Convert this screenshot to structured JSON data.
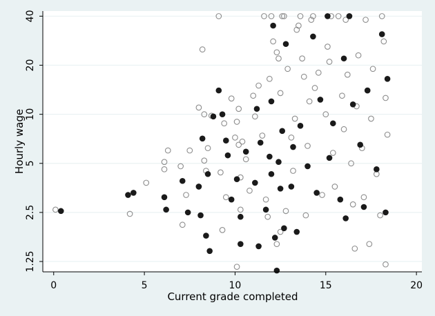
{
  "chart_data": {
    "type": "scatter",
    "title": "",
    "xlabel": "Current grade completed",
    "ylabel": "Hourly wage",
    "xlim": [
      -0.6,
      20.3
    ],
    "ylim": [
      1.08,
      43
    ],
    "y_scale": "log",
    "x_ticks": [
      0,
      5,
      10,
      15,
      20
    ],
    "y_ticks": [
      1.25,
      2.5,
      5,
      10,
      20,
      40
    ],
    "y_tick_labels": [
      "1.25",
      "2.5",
      "5",
      "10",
      "20",
      "40"
    ],
    "grid": "horizontal",
    "legend": "none",
    "colors": {
      "page_background": "#eaf2f3",
      "plot_background": "#ffffff",
      "gridline": "#eaf2f3",
      "filled_marker": "#1a1a1a",
      "hollow_marker_edge": "#8c8c8c"
    },
    "series": [
      {
        "marker": "hollow circle",
        "points": [
          [
            0.1,
            2.6
          ],
          [
            4.2,
            2.45
          ],
          [
            5.1,
            3.8
          ],
          [
            6.1,
            4.6
          ],
          [
            6.1,
            5.1
          ],
          [
            6.3,
            6.0
          ],
          [
            7.0,
            4.8
          ],
          [
            7.1,
            2.1
          ],
          [
            7.3,
            3.2
          ],
          [
            7.5,
            6.0
          ],
          [
            8.0,
            3.6
          ],
          [
            8.3,
            5.2
          ],
          [
            8.4,
            4.5
          ],
          [
            8.5,
            6.2
          ],
          [
            8.2,
            25
          ],
          [
            8.0,
            11
          ],
          [
            8.3,
            10
          ],
          [
            8.7,
            9.8
          ],
          [
            9.2,
            4.4
          ],
          [
            9.4,
            8.8
          ],
          [
            9.1,
            40
          ],
          [
            9.3,
            1.95
          ],
          [
            9.5,
            3.1
          ],
          [
            9.8,
            12.5
          ],
          [
            10.0,
            7.2
          ],
          [
            10.1,
            9.0
          ],
          [
            10.2,
            6.5
          ],
          [
            10.3,
            4.1
          ],
          [
            10.3,
            2.6
          ],
          [
            10.4,
            6.8
          ],
          [
            10.2,
            10.8
          ],
          [
            10.1,
            1.16
          ],
          [
            10.6,
            5.3
          ],
          [
            10.8,
            3.4
          ],
          [
            11.0,
            13
          ],
          [
            11.1,
            9.7
          ],
          [
            11.3,
            15
          ],
          [
            11.5,
            7.4
          ],
          [
            11.6,
            40
          ],
          [
            11.7,
            3.0
          ],
          [
            11.8,
            2.35
          ],
          [
            11.9,
            16.5
          ],
          [
            12.0,
            40
          ],
          [
            12.1,
            28
          ],
          [
            12.3,
            24
          ],
          [
            12.4,
            22
          ],
          [
            12.5,
            13.5
          ],
          [
            12.6,
            40
          ],
          [
            12.7,
            40
          ],
          [
            12.9,
            19
          ],
          [
            12.8,
            2.55
          ],
          [
            12.5,
            1.9
          ],
          [
            12.3,
            1.6
          ],
          [
            13.1,
            7.2
          ],
          [
            13.2,
            4.5
          ],
          [
            13.3,
            9.4
          ],
          [
            13.4,
            33
          ],
          [
            13.5,
            35
          ],
          [
            13.6,
            40
          ],
          [
            13.8,
            17
          ],
          [
            13.7,
            22
          ],
          [
            13.9,
            2.4
          ],
          [
            14.0,
            6.4
          ],
          [
            14.1,
            12
          ],
          [
            14.2,
            38
          ],
          [
            14.3,
            40
          ],
          [
            14.4,
            14.5
          ],
          [
            14.6,
            18
          ],
          [
            14.8,
            3.2
          ],
          [
            15.0,
            10
          ],
          [
            15.1,
            26
          ],
          [
            15.2,
            21
          ],
          [
            15.3,
            40
          ],
          [
            15.4,
            5.8
          ],
          [
            15.5,
            3.6
          ],
          [
            15.7,
            40
          ],
          [
            15.9,
            13
          ],
          [
            16.0,
            8.1
          ],
          [
            16.1,
            38
          ],
          [
            16.2,
            17.5
          ],
          [
            16.3,
            40
          ],
          [
            16.4,
            5.0
          ],
          [
            16.5,
            2.8
          ],
          [
            16.6,
            1.5
          ],
          [
            16.7,
            11.2
          ],
          [
            16.8,
            23
          ],
          [
            17.0,
            6.2
          ],
          [
            17.1,
            3.1
          ],
          [
            17.2,
            38
          ],
          [
            17.3,
            14
          ],
          [
            17.4,
            1.6
          ],
          [
            17.5,
            9.4
          ],
          [
            17.6,
            19
          ],
          [
            17.8,
            4.3
          ],
          [
            18.0,
            2.4
          ],
          [
            18.1,
            40
          ],
          [
            18.2,
            28
          ],
          [
            18.3,
            12.6
          ],
          [
            18.4,
            7.5
          ],
          [
            18.3,
            1.2
          ]
        ]
      },
      {
        "marker": "filled circle",
        "points": [
          [
            0.4,
            2.55
          ],
          [
            4.1,
            3.2
          ],
          [
            4.4,
            3.3
          ],
          [
            6.1,
            3.1
          ],
          [
            6.2,
            2.6
          ],
          [
            7.1,
            3.9
          ],
          [
            7.4,
            2.5
          ],
          [
            8.0,
            3.6
          ],
          [
            8.1,
            2.4
          ],
          [
            8.2,
            7.1
          ],
          [
            8.4,
            1.8
          ],
          [
            8.5,
            4.3
          ],
          [
            8.6,
            1.45
          ],
          [
            8.8,
            9.7
          ],
          [
            9.1,
            14
          ],
          [
            9.3,
            10
          ],
          [
            9.5,
            6.9
          ],
          [
            9.6,
            5.6
          ],
          [
            9.8,
            3.0
          ],
          [
            10.1,
            4.0
          ],
          [
            10.3,
            2.35
          ],
          [
            10.3,
            1.6
          ],
          [
            10.6,
            5.9
          ],
          [
            11.1,
            3.8
          ],
          [
            11.2,
            10.8
          ],
          [
            11.3,
            1.55
          ],
          [
            11.4,
            6.7
          ],
          [
            11.7,
            2.6
          ],
          [
            11.9,
            5.5
          ],
          [
            12.0,
            4.3
          ],
          [
            12.0,
            12
          ],
          [
            12.1,
            35
          ],
          [
            12.2,
            1.75
          ],
          [
            12.3,
            1.1
          ],
          [
            12.4,
            5.1
          ],
          [
            12.5,
            3.5
          ],
          [
            12.6,
            7.9
          ],
          [
            12.7,
            2.0
          ],
          [
            12.8,
            27
          ],
          [
            13.1,
            3.6
          ],
          [
            13.2,
            6.3
          ],
          [
            13.4,
            1.9
          ],
          [
            13.6,
            8.5
          ],
          [
            14.0,
            4.8
          ],
          [
            14.3,
            30
          ],
          [
            14.5,
            3.3
          ],
          [
            14.7,
            12.3
          ],
          [
            15.1,
            40
          ],
          [
            15.2,
            5.4
          ],
          [
            15.4,
            8.8
          ],
          [
            15.8,
            3.0
          ],
          [
            16.0,
            22
          ],
          [
            16.1,
            2.3
          ],
          [
            16.3,
            40
          ],
          [
            16.5,
            11.5
          ],
          [
            16.9,
            6.5
          ],
          [
            17.1,
            2.7
          ],
          [
            17.3,
            14
          ],
          [
            17.8,
            4.6
          ],
          [
            18.1,
            31
          ],
          [
            18.3,
            2.5
          ],
          [
            18.4,
            16.5
          ]
        ]
      }
    ]
  }
}
